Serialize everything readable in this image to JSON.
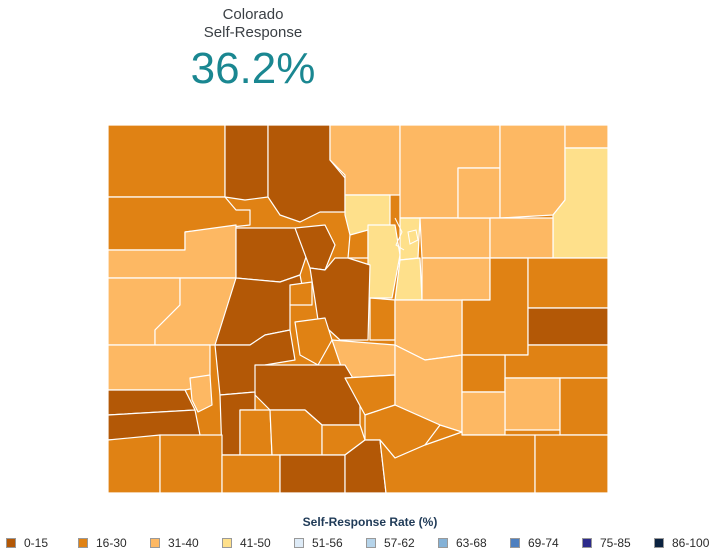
{
  "header": {
    "name": "Colorado",
    "label": "Self-Response",
    "value": "36.2%"
  },
  "colors": {
    "r0_15": "#b35806",
    "r16_30": "#e08214",
    "r31_40": "#fdb863",
    "r41_50": "#fee08b",
    "r51_56": "#deebf7",
    "r57_62": "#b6d4ea",
    "r63_68": "#84b1d6",
    "r69_74": "#4d7fbf",
    "r75_85": "#2c2a8a",
    "r86_100": "#0b2240"
  },
  "legend": {
    "title": "Self-Response Rate (%)",
    "items": [
      {
        "label": "0-15",
        "color": "#b35806"
      },
      {
        "label": "16-30",
        "color": "#e08214"
      },
      {
        "label": "31-40",
        "color": "#fdb863"
      },
      {
        "label": "41-50",
        "color": "#fee08b"
      },
      {
        "label": "51-56",
        "color": "#deebf7"
      },
      {
        "label": "57-62",
        "color": "#b6d4ea"
      },
      {
        "label": "63-68",
        "color": "#84b1d6"
      },
      {
        "label": "69-74",
        "color": "#4d7fbf"
      },
      {
        "label": "75-85",
        "color": "#2c2a8a"
      },
      {
        "label": "86-100",
        "color": "#0b2240"
      }
    ]
  }
}
